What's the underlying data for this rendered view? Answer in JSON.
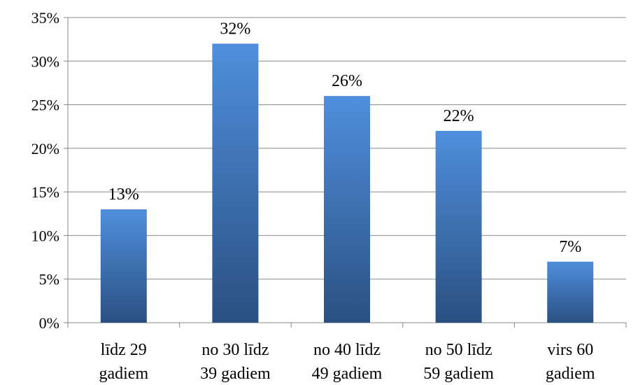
{
  "chart_data": {
    "type": "bar",
    "categories": [
      [
        "līdz 29",
        "gadiem"
      ],
      [
        "no 30 līdz",
        "39 gadiem"
      ],
      [
        "no 40 līdz",
        "49 gadiem"
      ],
      [
        "no 50 līdz",
        "59 gadiem"
      ],
      [
        "virs 60",
        "gadiem"
      ]
    ],
    "values": [
      13,
      32,
      26,
      22,
      7
    ],
    "value_labels": [
      "13%",
      "32%",
      "26%",
      "22%",
      "7%"
    ],
    "y_ticks": [
      0,
      5,
      10,
      15,
      20,
      25,
      30,
      35
    ],
    "y_tick_labels": [
      "0%",
      "5%",
      "10%",
      "15%",
      "20%",
      "25%",
      "30%",
      "35%"
    ],
    "ylim": [
      0,
      35
    ],
    "grid": true,
    "legend": "none",
    "colors": {
      "bar_top": "#4f8fdc",
      "bar_bottom": "#2a5082"
    }
  }
}
